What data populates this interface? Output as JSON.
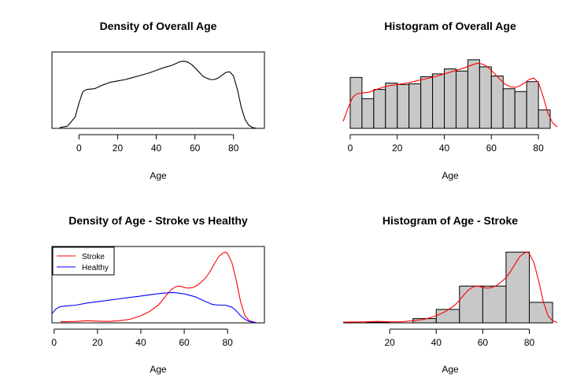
{
  "chart_data": [
    {
      "id": "p1",
      "type": "line",
      "title": "Density of Overall Age",
      "xlabel": "Age",
      "ylabel": "",
      "xlim": [
        -14,
        96
      ],
      "ylim": [
        0,
        1.08
      ],
      "xticks": [
        0,
        20,
        40,
        60,
        80
      ],
      "box": true,
      "series": [
        {
          "color": "#000000",
          "x": [
            -10,
            -6,
            -2,
            0,
            2,
            4,
            8,
            12,
            16,
            20,
            24,
            28,
            32,
            36,
            40,
            44,
            48,
            52,
            54,
            56,
            58,
            60,
            62,
            64,
            66,
            68,
            70,
            72,
            74,
            76,
            78,
            80,
            82,
            84,
            86,
            88,
            90,
            92
          ],
          "y": [
            0.01,
            0.03,
            0.16,
            0.36,
            0.52,
            0.55,
            0.56,
            0.61,
            0.65,
            0.67,
            0.69,
            0.72,
            0.75,
            0.78,
            0.82,
            0.86,
            0.89,
            0.94,
            0.95,
            0.94,
            0.91,
            0.86,
            0.8,
            0.74,
            0.71,
            0.69,
            0.69,
            0.71,
            0.75,
            0.79,
            0.8,
            0.74,
            0.55,
            0.3,
            0.12,
            0.04,
            0.01,
            0.0
          ]
        }
      ]
    },
    {
      "id": "p2",
      "type": "bar",
      "title": "Histogram of Overall Age",
      "xlabel": "Age",
      "ylabel": "",
      "xlim": [
        -3,
        88
      ],
      "ylim": [
        0,
        1.08
      ],
      "xticks": [
        0,
        20,
        40,
        60,
        80
      ],
      "box": false,
      "bin_edges": [
        0,
        5,
        10,
        15,
        20,
        25,
        30,
        35,
        40,
        45,
        50,
        55,
        60,
        65,
        70,
        75,
        80,
        85
      ],
      "values": [
        0.72,
        0.42,
        0.55,
        0.64,
        0.62,
        0.63,
        0.73,
        0.77,
        0.84,
        0.81,
        0.97,
        0.87,
        0.74,
        0.56,
        0.52,
        0.66,
        0.26
      ],
      "bar_fill": "#c8c8c8",
      "overlay": {
        "color": "#ff0000",
        "x": [
          -3,
          -1,
          1,
          3,
          5,
          8,
          12,
          16,
          20,
          24,
          28,
          32,
          36,
          40,
          44,
          48,
          52,
          54,
          56,
          58,
          60,
          62,
          64,
          66,
          68,
          70,
          72,
          74,
          76,
          78,
          80,
          82,
          84,
          86,
          88
        ],
        "y": [
          0.1,
          0.28,
          0.44,
          0.49,
          0.5,
          0.51,
          0.56,
          0.6,
          0.62,
          0.64,
          0.67,
          0.7,
          0.73,
          0.77,
          0.81,
          0.85,
          0.9,
          0.92,
          0.91,
          0.88,
          0.82,
          0.75,
          0.68,
          0.62,
          0.59,
          0.58,
          0.6,
          0.64,
          0.69,
          0.71,
          0.65,
          0.45,
          0.22,
          0.08,
          0.02
        ]
      }
    },
    {
      "id": "p3",
      "type": "line",
      "title": "Density of Age - Stroke vs Healthy",
      "xlabel": "Age",
      "ylabel": "",
      "xlim": [
        -1,
        97
      ],
      "ylim": [
        0,
        1.08
      ],
      "xticks": [
        0,
        20,
        40,
        60,
        80
      ],
      "box": true,
      "legend": {
        "position": "top-left",
        "entries": [
          {
            "label": "Stroke",
            "color": "#ff0000"
          },
          {
            "label": "Healthy",
            "color": "#0000ff"
          }
        ]
      },
      "series": [
        {
          "name": "Stroke",
          "color": "#ff0000",
          "x": [
            3,
            10,
            15,
            20,
            25,
            30,
            35,
            40,
            44,
            48,
            50,
            52,
            54,
            56,
            58,
            60,
            62,
            64,
            66,
            68,
            70,
            72,
            74,
            76,
            78,
            79,
            80,
            82,
            84,
            86,
            88,
            90,
            93
          ],
          "y": [
            0.015,
            0.02,
            0.03,
            0.025,
            0.02,
            0.03,
            0.05,
            0.1,
            0.16,
            0.25,
            0.32,
            0.4,
            0.47,
            0.51,
            0.52,
            0.5,
            0.49,
            0.5,
            0.53,
            0.58,
            0.64,
            0.73,
            0.84,
            0.94,
            0.99,
            1.0,
            0.98,
            0.85,
            0.6,
            0.3,
            0.1,
            0.03,
            0.005
          ]
        },
        {
          "name": "Healthy",
          "color": "#0000ff",
          "x": [
            -1,
            1,
            3,
            6,
            10,
            15,
            20,
            25,
            30,
            35,
            40,
            45,
            50,
            55,
            60,
            65,
            70,
            73,
            76,
            79,
            82,
            84,
            86,
            88,
            90,
            93
          ],
          "y": [
            0.13,
            0.2,
            0.23,
            0.24,
            0.25,
            0.28,
            0.3,
            0.32,
            0.34,
            0.36,
            0.38,
            0.4,
            0.42,
            0.43,
            0.41,
            0.37,
            0.3,
            0.26,
            0.25,
            0.25,
            0.22,
            0.17,
            0.1,
            0.05,
            0.02,
            0.005
          ]
        }
      ]
    },
    {
      "id": "p4",
      "type": "bar",
      "title": "Histogram of Age - Stroke",
      "xlabel": "Age",
      "ylabel": "",
      "xlim": [
        0,
        92
      ],
      "ylim": [
        0,
        1.08
      ],
      "xticks": [
        20,
        40,
        60,
        80
      ],
      "box": false,
      "bin_edges": [
        0,
        10,
        20,
        30,
        40,
        50,
        60,
        70,
        80,
        90
      ],
      "values": [
        0.0,
        0.01,
        0.0,
        0.06,
        0.19,
        0.52,
        0.52,
        1.0,
        0.29
      ],
      "bar_fill": "#c8c8c8",
      "overlay": {
        "color": "#ff0000",
        "x": [
          0,
          10,
          15,
          20,
          25,
          30,
          35,
          40,
          44,
          48,
          50,
          52,
          54,
          56,
          58,
          60,
          62,
          64,
          66,
          68,
          70,
          72,
          74,
          76,
          78,
          79,
          80,
          82,
          84,
          86,
          88,
          90,
          92
        ],
        "y": [
          0.01,
          0.015,
          0.02,
          0.015,
          0.015,
          0.03,
          0.05,
          0.1,
          0.16,
          0.25,
          0.32,
          0.4,
          0.47,
          0.51,
          0.52,
          0.5,
          0.49,
          0.5,
          0.53,
          0.58,
          0.64,
          0.73,
          0.84,
          0.94,
          0.99,
          1.0,
          0.98,
          0.85,
          0.6,
          0.3,
          0.1,
          0.03,
          0.005
        ]
      }
    }
  ]
}
